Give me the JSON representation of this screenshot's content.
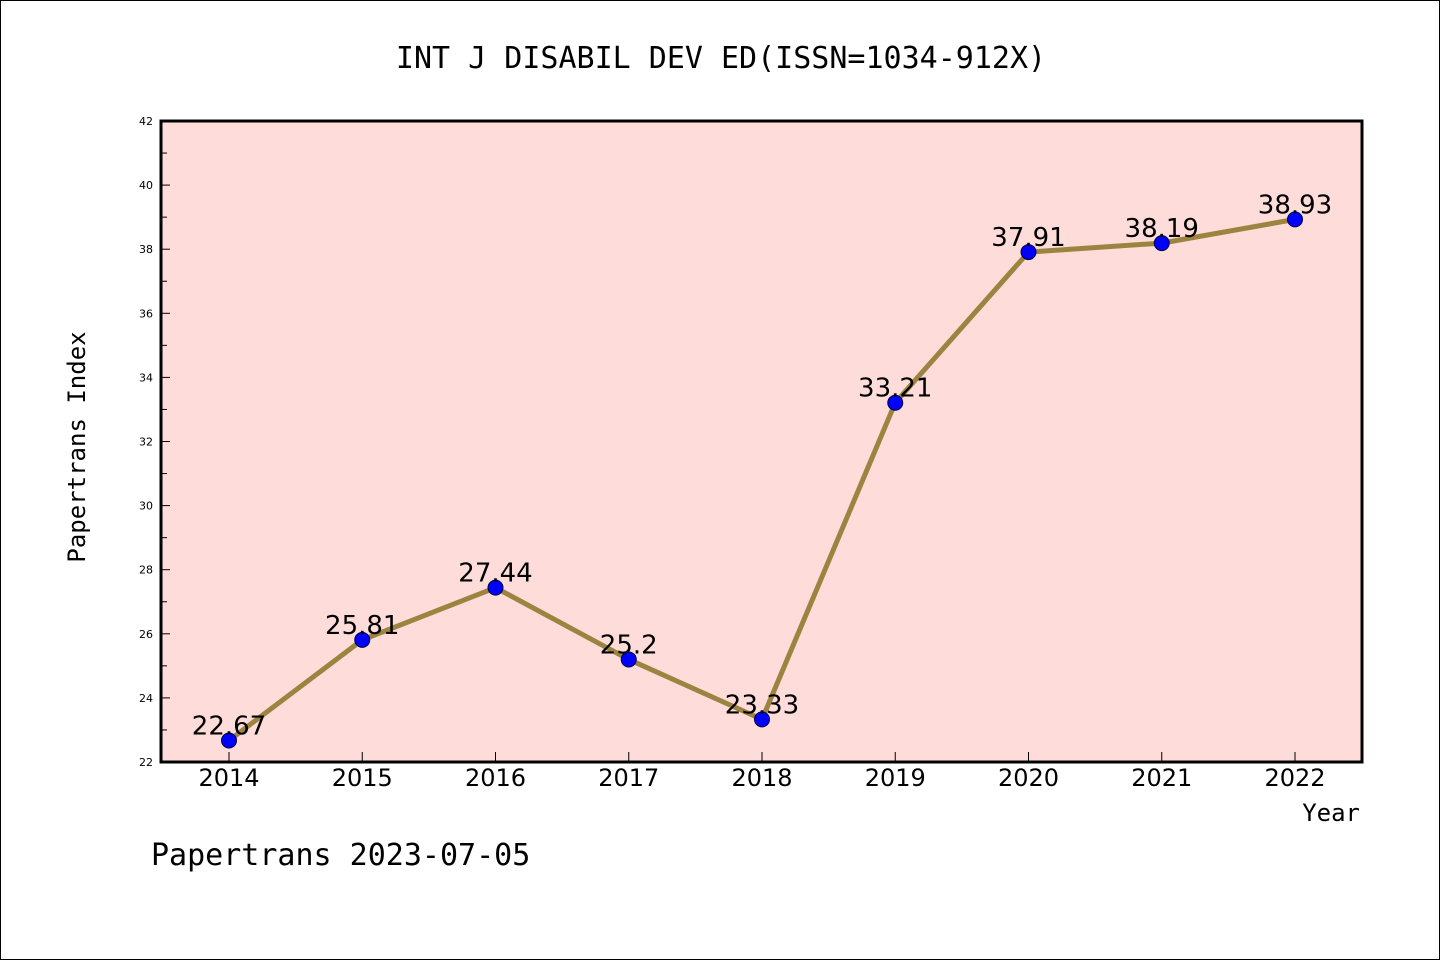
{
  "chart_data": {
    "type": "line",
    "title": "INT J DISABIL DEV ED(ISSN=1034-912X)",
    "xlabel": "Year",
    "ylabel": "Papertrans Index",
    "categories": [
      "2014",
      "2015",
      "2016",
      "2017",
      "2018",
      "2019",
      "2020",
      "2021",
      "2022"
    ],
    "series": [
      {
        "values": [
          22.67,
          25.81,
          27.44,
          25.2,
          23.33,
          33.21,
          37.91,
          38.19,
          38.93
        ],
        "labels": [
          "22.67",
          "25.81",
          "27.44",
          "25.2",
          "23.33",
          "33.21",
          "37.91",
          "38.19",
          "38.93"
        ]
      }
    ],
    "ylim": [
      22,
      42
    ],
    "yticks": [
      "22",
      "24",
      "26",
      "28",
      "30",
      "32",
      "34",
      "36",
      "38",
      "40",
      "42"
    ],
    "grid": false,
    "plot_background": "#FDDCDA",
    "line_color": "#9C8440",
    "marker_color": "#0000FF",
    "footer": "Papertrans 2023-07-05"
  }
}
